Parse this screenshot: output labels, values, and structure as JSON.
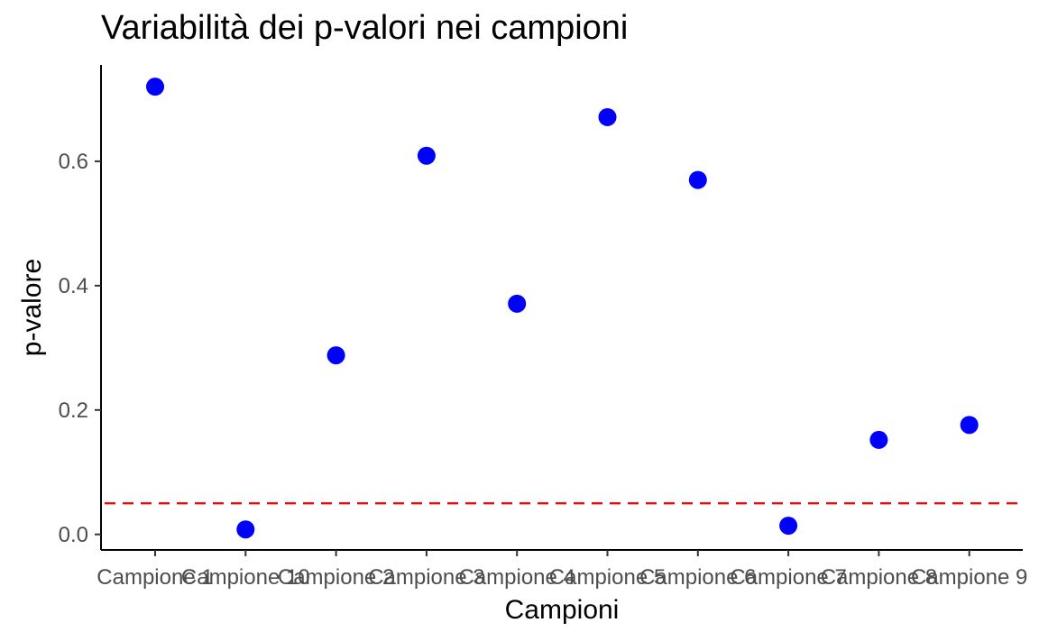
{
  "chart_data": {
    "type": "scatter",
    "title": "Variabilità dei p-valori nei campioni",
    "xlabel": "Campioni",
    "ylabel": "p-valore",
    "categories": [
      "Campione 1",
      "Campione 10",
      "Campione 2",
      "Campione 3",
      "Campione 4",
      "Campione 5",
      "Campione 6",
      "Campione 7",
      "Campione 8",
      "Campione 9"
    ],
    "values": [
      0.72,
      0.008,
      0.288,
      0.609,
      0.371,
      0.671,
      0.57,
      0.014,
      0.152,
      0.176
    ],
    "ylim": [
      -0.025,
      0.755
    ],
    "yticks": [
      0.0,
      0.2,
      0.4,
      0.6
    ],
    "ytick_labels": [
      "0.0",
      "0.2",
      "0.4",
      "0.6"
    ],
    "reference_line": {
      "y": 0.05,
      "style": "dashed",
      "color": "#ff0000"
    },
    "point_color": "#0000ff",
    "grid": false,
    "legend": "none"
  }
}
